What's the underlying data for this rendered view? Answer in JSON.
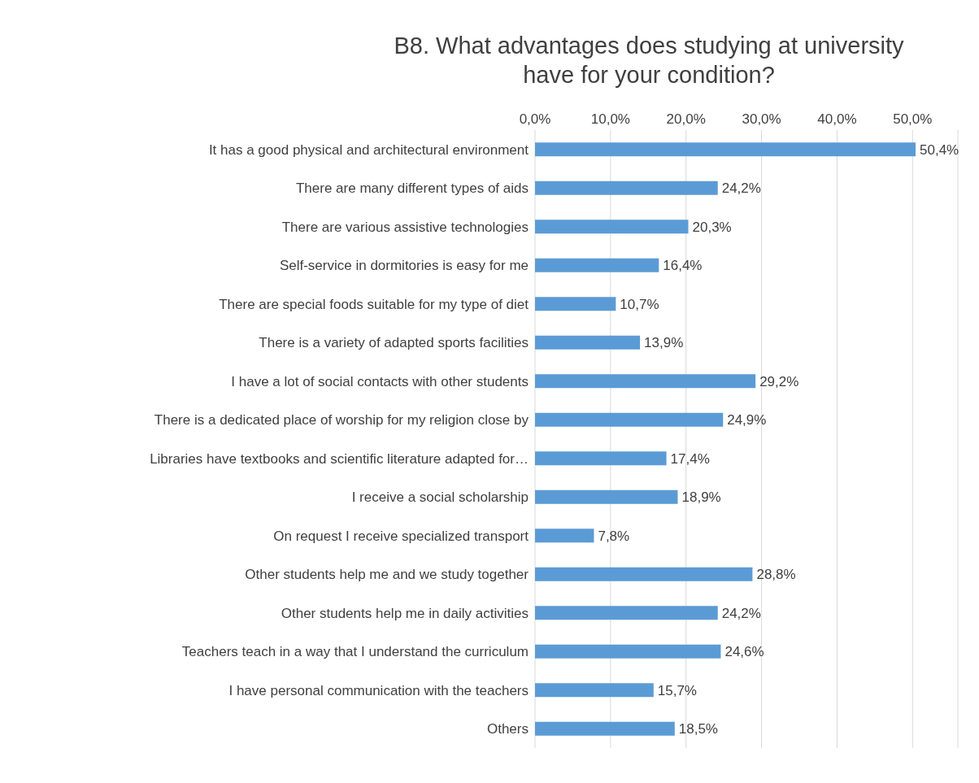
{
  "chart_data": {
    "type": "bar",
    "orientation": "horizontal",
    "title": "B8. What advantages does studying at university have for your condition?",
    "categories": [
      "It has a good physical and architectural environment",
      "There are many different types of aids",
      "There are various assistive technologies",
      "Self-service in dormitories is easy for me",
      "There are special foods suitable for my type of diet",
      "There is a variety of adapted sports facilities",
      "I have a lot of social contacts with other students",
      "There is a dedicated place of worship for my religion close by",
      "Libraries have textbooks and scientific literature adapted for…",
      "I receive a social scholarship",
      "On request I receive specialized transport",
      "Other students help me and we study together",
      "Other students help me in daily activities",
      "Teachers teach in a way that I understand the curriculum",
      "I have personal communication with the teachers",
      "Others"
    ],
    "values": [
      50.4,
      24.2,
      20.3,
      16.4,
      10.7,
      13.9,
      29.2,
      24.9,
      17.4,
      18.9,
      7.8,
      28.8,
      24.2,
      24.6,
      15.7,
      18.5
    ],
    "value_labels": [
      "50,4%",
      "24,2%",
      "20,3%",
      "16,4%",
      "10,7%",
      "13,9%",
      "29,2%",
      "24,9%",
      "17,4%",
      "18,9%",
      "7,8%",
      "28,8%",
      "24,2%",
      "24,6%",
      "15,7%",
      "18,5%"
    ],
    "color": "#5b9bd5",
    "xlim": [
      0,
      56
    ],
    "xticks": [
      {
        "value": 0,
        "label": "0,0%"
      },
      {
        "value": 10,
        "label": "10,0%"
      },
      {
        "value": 20,
        "label": "20,0%"
      },
      {
        "value": 30,
        "label": "30,0%"
      },
      {
        "value": 40,
        "label": "40,0%"
      },
      {
        "value": 50,
        "label": "50,0%"
      }
    ],
    "grid": "x",
    "legend": false
  }
}
